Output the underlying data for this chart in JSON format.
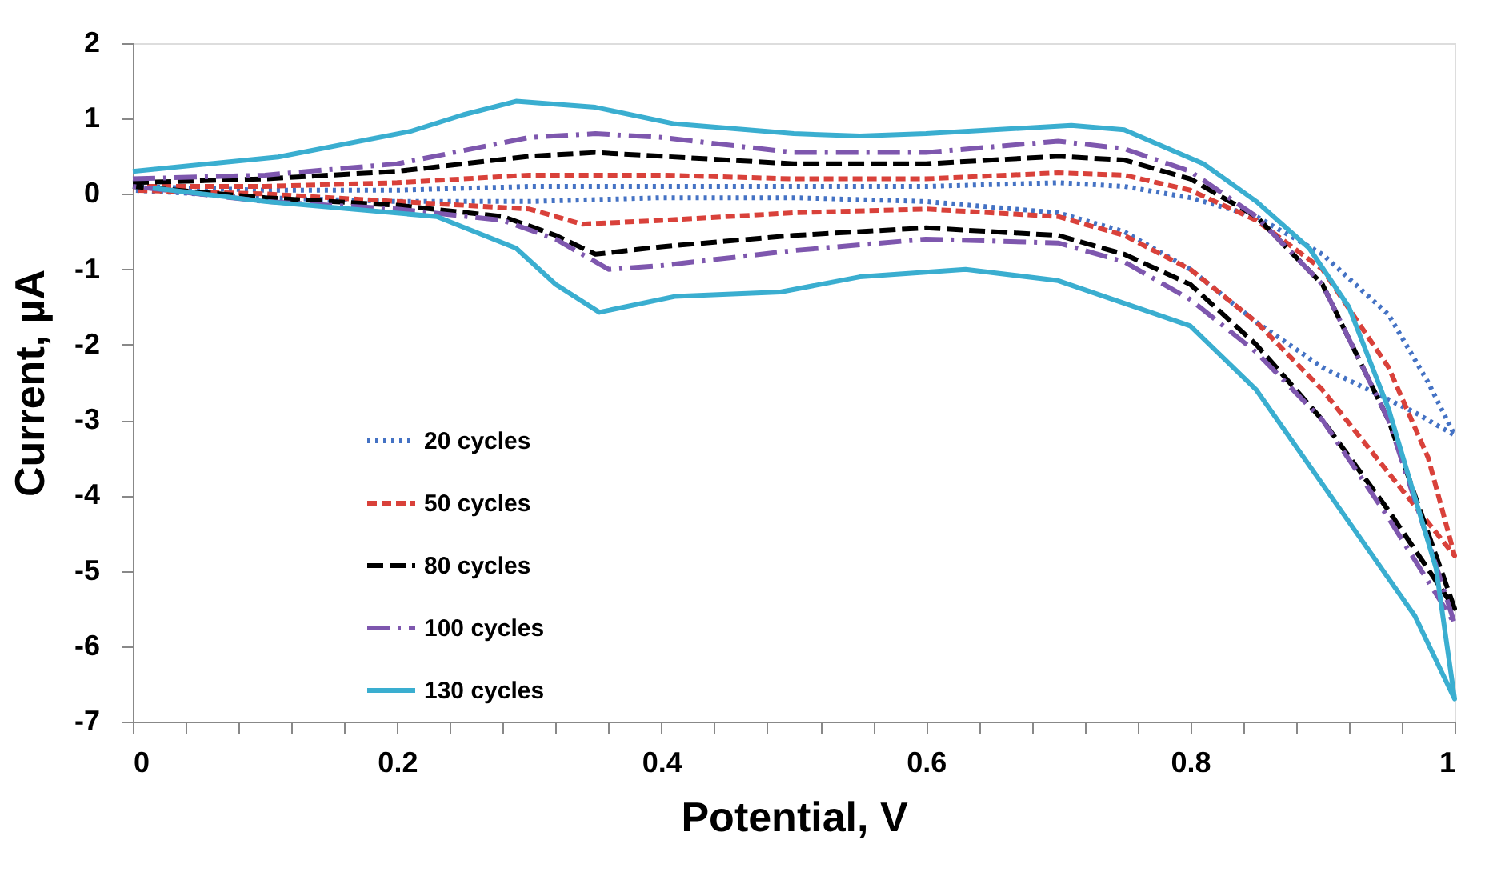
{
  "chart_data": {
    "type": "line",
    "xlabel": "Potential, V",
    "ylabel": "Current, µA",
    "xlim": [
      0,
      1
    ],
    "ylim": [
      -7,
      2
    ],
    "xticks": [
      0,
      {
        "value": 0.04,
        "label": null
      },
      {
        "value": 0.08,
        "label": null
      },
      {
        "value": 0.12,
        "label": null
      },
      {
        "value": 0.16,
        "label": null
      },
      0.2,
      {
        "value": 0.24,
        "label": null
      },
      {
        "value": 0.28,
        "label": null
      },
      {
        "value": 0.32,
        "label": null
      },
      {
        "value": 0.36,
        "label": null
      },
      0.4,
      {
        "value": 0.44,
        "label": null
      },
      {
        "value": 0.48,
        "label": null
      },
      {
        "value": 0.52,
        "label": null
      },
      {
        "value": 0.56,
        "label": null
      },
      0.6,
      {
        "value": 0.64,
        "label": null
      },
      {
        "value": 0.68,
        "label": null
      },
      {
        "value": 0.72,
        "label": null
      },
      {
        "value": 0.76,
        "label": null
      },
      0.8,
      {
        "value": 0.84,
        "label": null
      },
      {
        "value": 0.88,
        "label": null
      },
      {
        "value": 0.92,
        "label": null
      },
      {
        "value": 0.96,
        "label": null
      },
      1
    ],
    "yticks": [
      -7,
      -6,
      -5,
      -4,
      -3,
      -2,
      -1,
      0,
      1,
      2
    ],
    "grid": false,
    "legend": "bottom left",
    "marker": "none",
    "series": [
      {
        "name": "20 cycles",
        "color": "#4472c4",
        "line_style": "dotted",
        "x": [
          0,
          0.1,
          0.2,
          0.3,
          0.4,
          0.5,
          0.6,
          0.7,
          0.75,
          0.8,
          0.85,
          0.9,
          0.95,
          0.98,
          1,
          0.97,
          0.9,
          0.85,
          0.8,
          0.75,
          0.7,
          0.6,
          0.5,
          0.4,
          0.3,
          0.2,
          0.1,
          0
        ],
        "values": [
          0.1,
          0.05,
          0.05,
          0.1,
          0.1,
          0.1,
          0.1,
          0.15,
          0.1,
          -0.05,
          -0.3,
          -0.8,
          -1.6,
          -2.5,
          -3.2,
          -2.9,
          -2.3,
          -1.7,
          -1.0,
          -0.5,
          -0.25,
          -0.1,
          -0.05,
          -0.05,
          -0.1,
          -0.1,
          -0.05,
          0.05
        ]
      },
      {
        "name": "50 cycles",
        "color": "#d9413a",
        "line_style": "dashed",
        "x": [
          0,
          0.1,
          0.2,
          0.3,
          0.4,
          0.5,
          0.6,
          0.7,
          0.75,
          0.8,
          0.85,
          0.9,
          0.95,
          0.98,
          1,
          0.95,
          0.9,
          0.85,
          0.8,
          0.75,
          0.7,
          0.6,
          0.5,
          0.4,
          0.34,
          0.3,
          0.2,
          0.1,
          0
        ],
        "values": [
          0.1,
          0.1,
          0.15,
          0.25,
          0.25,
          0.2,
          0.2,
          0.28,
          0.25,
          0.05,
          -0.35,
          -1.0,
          -2.3,
          -3.5,
          -4.8,
          -3.7,
          -2.6,
          -1.7,
          -1.0,
          -0.55,
          -0.3,
          -0.2,
          -0.25,
          -0.35,
          -0.4,
          -0.2,
          -0.1,
          0,
          0.05
        ]
      },
      {
        "name": "80 cycles",
        "color": "#000000",
        "line_style": "dashed",
        "x": [
          0,
          0.1,
          0.2,
          0.3,
          0.35,
          0.4,
          0.5,
          0.6,
          0.7,
          0.75,
          0.8,
          0.85,
          0.9,
          0.95,
          0.98,
          1,
          0.95,
          0.9,
          0.85,
          0.8,
          0.75,
          0.7,
          0.6,
          0.5,
          0.4,
          0.35,
          0.32,
          0.28,
          0.2,
          0.1,
          0
        ],
        "values": [
          0.15,
          0.2,
          0.3,
          0.5,
          0.55,
          0.5,
          0.4,
          0.4,
          0.5,
          0.45,
          0.2,
          -0.3,
          -1.2,
          -3.0,
          -4.5,
          -5.5,
          -4.2,
          -3.0,
          -2.0,
          -1.2,
          -0.8,
          -0.55,
          -0.45,
          -0.55,
          -0.7,
          -0.8,
          -0.55,
          -0.3,
          -0.15,
          -0.05,
          0.1
        ]
      },
      {
        "name": "100 cycles",
        "color": "#7e57ae",
        "line_style": "dashdot",
        "x": [
          0,
          0.1,
          0.2,
          0.3,
          0.35,
          0.4,
          0.5,
          0.6,
          0.7,
          0.75,
          0.8,
          0.85,
          0.9,
          0.95,
          0.98,
          1,
          0.95,
          0.9,
          0.85,
          0.8,
          0.75,
          0.7,
          0.6,
          0.5,
          0.4,
          0.36,
          0.32,
          0.28,
          0.2,
          0.1,
          0
        ],
        "values": [
          0.2,
          0.25,
          0.4,
          0.75,
          0.8,
          0.75,
          0.55,
          0.55,
          0.7,
          0.6,
          0.3,
          -0.3,
          -1.2,
          -3.0,
          -4.6,
          -5.7,
          -4.3,
          -3.0,
          -2.1,
          -1.4,
          -0.9,
          -0.65,
          -0.6,
          -0.75,
          -0.95,
          -1.0,
          -0.6,
          -0.35,
          -0.2,
          -0.1,
          0.1
        ]
      },
      {
        "name": "130 cycles",
        "color": "#3aaed0",
        "line_style": "solid",
        "x": [
          0,
          0.11,
          0.21,
          0.25,
          0.29,
          0.35,
          0.41,
          0.5,
          0.55,
          0.6,
          0.71,
          0.75,
          0.81,
          0.85,
          0.89,
          0.92,
          0.95,
          0.986,
          1,
          0.97,
          0.93,
          0.85,
          0.8,
          0.77,
          0.7,
          0.63,
          0.55,
          0.49,
          0.41,
          0.353,
          0.32,
          0.29,
          0.23,
          0.1,
          0.015
        ],
        "values": [
          0.3,
          0.49,
          0.83,
          1.05,
          1.23,
          1.15,
          0.93,
          0.8,
          0.77,
          0.8,
          0.91,
          0.85,
          0.4,
          -0.1,
          -0.72,
          -1.5,
          -2.85,
          -4.97,
          -6.7,
          -5.6,
          -4.6,
          -2.6,
          -1.75,
          -1.57,
          -1.15,
          -1.0,
          -1.1,
          -1.3,
          -1.36,
          -1.57,
          -1.2,
          -0.72,
          -0.3,
          -0.1,
          0.08
        ]
      }
    ]
  }
}
